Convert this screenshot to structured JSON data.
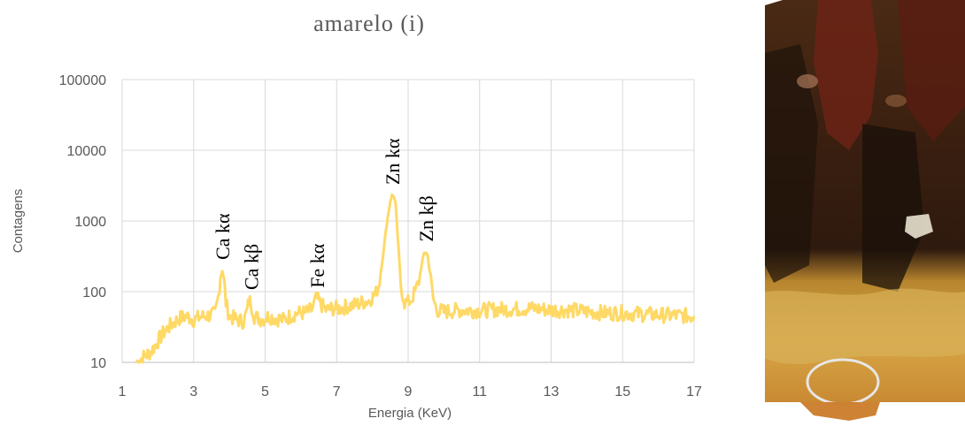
{
  "chart_data": {
    "type": "line",
    "title": "amarelo (i)",
    "xlabel": "Energia (KeV)",
    "ylabel": "Contagens",
    "xlim": [
      1,
      17
    ],
    "ylim": [
      10,
      100000
    ],
    "yscale": "log",
    "grid": true,
    "x_ticks": [
      "1",
      "3",
      "5",
      "7",
      "9",
      "11",
      "13",
      "15",
      "17"
    ],
    "y_ticks": [
      "10",
      "100",
      "1000",
      "10000",
      "100000"
    ],
    "line_color": "#ffd966",
    "series": [
      {
        "name": "",
        "x": [
          1.4,
          1.6,
          1.8,
          2.0,
          2.2,
          2.4,
          2.6,
          2.8,
          3.0,
          3.2,
          3.4,
          3.6,
          3.7,
          3.75,
          3.8,
          3.85,
          3.9,
          4.0,
          4.2,
          4.4,
          4.5,
          4.55,
          4.6,
          4.7,
          4.9,
          5.1,
          5.3,
          5.5,
          5.7,
          5.9,
          6.1,
          6.3,
          6.4,
          6.45,
          6.5,
          6.7,
          6.9,
          7.1,
          7.3,
          7.5,
          7.7,
          7.9,
          8.1,
          8.2,
          8.3,
          8.4,
          8.5,
          8.55,
          8.6,
          8.65,
          8.7,
          8.8,
          8.9,
          9.0,
          9.1,
          9.2,
          9.3,
          9.4,
          9.45,
          9.5,
          9.55,
          9.6,
          9.7,
          9.8,
          10.0,
          10.5,
          11.0,
          11.5,
          12.0,
          12.5,
          13.0,
          13.5,
          14.0,
          14.5,
          15.0,
          15.5,
          16.0,
          16.5,
          17.0
        ],
        "y": [
          10,
          12,
          14,
          20,
          28,
          35,
          42,
          45,
          40,
          44,
          46,
          48,
          90,
          160,
          200,
          150,
          70,
          45,
          40,
          38,
          55,
          75,
          70,
          45,
          40,
          45,
          42,
          40,
          45,
          50,
          50,
          55,
          75,
          80,
          72,
          55,
          58,
          58,
          62,
          65,
          70,
          75,
          95,
          140,
          330,
          900,
          1900,
          2300,
          2250,
          1700,
          700,
          120,
          70,
          70,
          80,
          100,
          140,
          280,
          350,
          360,
          320,
          200,
          80,
          55,
          52,
          55,
          54,
          56,
          57,
          58,
          55,
          55,
          52,
          50,
          50,
          48,
          47,
          46,
          45
        ]
      }
    ],
    "annotations": [
      {
        "text": "Ca kα",
        "x": 3.8,
        "y": 200
      },
      {
        "text": "Ca kβ",
        "x": 4.6,
        "y": 75
      },
      {
        "text": "Fe kα",
        "x": 6.45,
        "y": 80
      },
      {
        "text": "Zn kα",
        "x": 8.55,
        "y": 2300
      },
      {
        "text": "Zn kβ",
        "x": 9.5,
        "y": 360
      }
    ]
  }
}
